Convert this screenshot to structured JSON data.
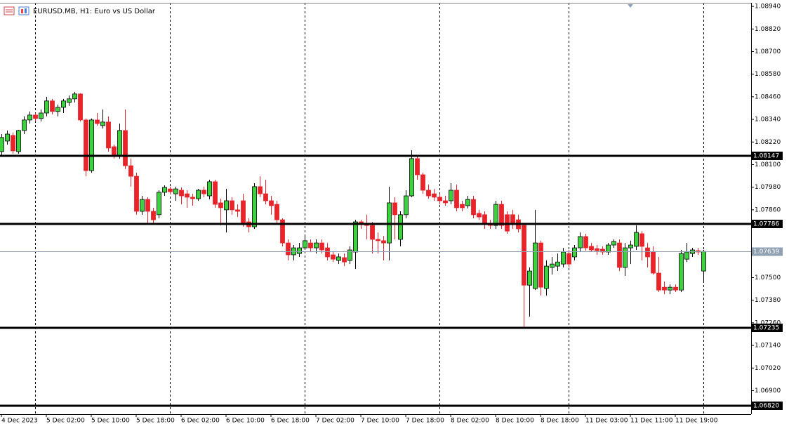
{
  "chart_data": {
    "type": "candlestick",
    "title": "EURUSD.MB, H1:  Euro vs US Dollar",
    "categories": [
      "4 Dec 2023",
      null,
      null,
      null,
      null,
      null,
      null,
      null,
      "5 Dec 02:00",
      null,
      null,
      null,
      null,
      null,
      null,
      null,
      "5 Dec 10:00",
      null,
      null,
      null,
      null,
      null,
      null,
      null,
      "5 Dec 18:00",
      null,
      null,
      null,
      null,
      null,
      null,
      null,
      "6 Dec 02:00",
      null,
      null,
      null,
      null,
      null,
      null,
      null,
      "6 Dec 10:00",
      null,
      null,
      null,
      null,
      null,
      null,
      null,
      "6 Dec 18:00",
      null,
      null,
      null,
      null,
      null,
      null,
      null,
      "7 Dec 02:00",
      null,
      null,
      null,
      null,
      null,
      null,
      null,
      "7 Dec 10:00",
      null,
      null,
      null,
      null,
      null,
      null,
      null,
      "7 Dec 18:00",
      null,
      null,
      null,
      null,
      null,
      null,
      null,
      "8 Dec 02:00",
      null,
      null,
      null,
      null,
      null,
      null,
      null,
      "8 Dec 10:00",
      null,
      null,
      null,
      null,
      null,
      null,
      null,
      "8 Dec 18:00",
      null,
      null,
      null,
      null,
      null,
      null,
      null,
      "11 Dec 03:00",
      null,
      null,
      null,
      null,
      null,
      null,
      null,
      "11 Dec 11:00",
      null,
      null,
      null,
      null,
      null,
      null,
      null,
      "11 Dec 19:00",
      null,
      null,
      null,
      null,
      null
    ],
    "open": [
      1.08169,
      1.08225,
      1.08255,
      1.08169,
      1.08281,
      1.08337,
      1.08363,
      1.08345,
      1.08374,
      1.08438,
      1.08382,
      1.08404,
      1.0843,
      1.08449,
      1.08475,
      1.08337,
      1.08068,
      1.08337,
      1.08307,
      1.08326,
      1.08195,
      1.0815,
      1.08281,
      1.08094,
      1.08038,
      1.07852,
      1.07915,
      1.07852,
      1.07834,
      1.07953,
      1.07971,
      1.07945,
      1.07964,
      1.07945,
      1.07927,
      1.07919,
      1.07964,
      1.07934,
      1.08009,
      1.07897,
      1.0786,
      1.07908,
      1.0786,
      1.07908,
      1.07796,
      1.0777,
      1.07983,
      1.07945,
      1.07908,
      1.07889,
      1.07807,
      1.07684,
      1.07621,
      1.07628,
      1.07658,
      1.07684,
      1.07658,
      1.07684,
      1.07658,
      1.07621,
      1.07591,
      1.07606,
      1.07591,
      1.07636,
      1.07796,
      1.07785,
      1.07777,
      1.07703,
      1.07696,
      1.07684,
      1.07897,
      1.07703,
      1.07834,
      1.07934,
      1.08132,
      1.08046,
      1.07964,
      1.07945,
      1.07927,
      1.07908,
      1.07908,
      1.07964,
      1.07889,
      1.07882,
      1.07915,
      1.07841,
      1.07834,
      1.07785,
      1.07777,
      1.07889,
      1.07834,
      1.07834,
      1.07807,
      1.07777,
      1.0746,
      1.07442,
      1.07684,
      1.07442,
      1.07554,
      1.07561,
      1.07572,
      1.07628,
      1.0761,
      1.07658,
      1.07718,
      1.07666,
      1.07654,
      1.07651,
      1.07636,
      1.07673,
      1.07684,
      1.07554,
      1.07658,
      1.07666,
      1.07733,
      1.07658,
      1.07636,
      1.07524,
      1.07449,
      1.07434,
      1.07449,
      1.07434,
      1.07598,
      1.07628,
      1.07643,
      1.07535
    ],
    "high": [
      1.08262,
      1.08281,
      1.0827,
      1.08285,
      1.08356,
      1.08382,
      1.08374,
      1.08393,
      1.0846,
      1.08449,
      1.08419,
      1.08449,
      1.08467,
      1.08486,
      1.08479,
      1.08345,
      1.08345,
      1.08374,
      1.08393,
      1.08356,
      1.08206,
      1.08318,
      1.08393,
      1.08132,
      1.08057,
      1.07934,
      1.07927,
      1.07871,
      1.07964,
      1.0799,
      1.07983,
      1.07983,
      1.07979,
      1.07964,
      1.07945,
      1.07971,
      1.07983,
      1.0802,
      1.0802,
      1.07919,
      1.07971,
      1.07927,
      1.07889,
      1.07945,
      1.07815,
      1.08001,
      1.08038,
      1.0802,
      1.07934,
      1.07908,
      1.07815,
      1.07703,
      1.07673,
      1.07684,
      1.07721,
      1.07703,
      1.07703,
      1.07703,
      1.07684,
      1.07636,
      1.07628,
      1.07628,
      1.07666,
      1.07807,
      1.07807,
      1.07834,
      1.07796,
      1.0774,
      1.07721,
      1.07983,
      1.07927,
      1.07852,
      1.07964,
      1.08176,
      1.0815,
      1.08057,
      1.07994,
      1.07971,
      1.07945,
      1.07934,
      1.08001,
      1.07994,
      1.07908,
      1.07934,
      1.07934,
      1.0786,
      1.07852,
      1.07807,
      1.07908,
      1.07908,
      1.07852,
      1.0786,
      1.07834,
      1.07785,
      1.07554,
      1.0786,
      1.07696,
      1.07591,
      1.0761,
      1.07628,
      1.07658,
      1.07647,
      1.07673,
      1.0774,
      1.07733,
      1.07684,
      1.07673,
      1.07666,
      1.07684,
      1.07703,
      1.07703,
      1.07684,
      1.07696,
      1.07777,
      1.07747,
      1.07684,
      1.07666,
      1.0761,
      1.07479,
      1.07464,
      1.07464,
      1.07647,
      1.07684,
      1.07658,
      1.07658,
      1.07647
    ],
    "low": [
      1.0815,
      1.08206,
      1.08158,
      1.08158,
      1.08262,
      1.08318,
      1.08329,
      1.08329,
      1.08356,
      1.08367,
      1.08356,
      1.08374,
      1.08412,
      1.0843,
      1.08329,
      1.08038,
      1.08057,
      1.08307,
      1.08292,
      1.08169,
      1.08132,
      1.08132,
      1.08076,
      1.07983,
      1.07834,
      1.07834,
      1.07785,
      1.07785,
      1.07815,
      1.07934,
      1.07942,
      1.07908,
      1.07889,
      1.07871,
      1.07882,
      1.07908,
      1.07927,
      1.07915,
      1.07871,
      1.07777,
      1.0774,
      1.07834,
      1.07822,
      1.0777,
      1.0774,
      1.07759,
      1.07927,
      1.07889,
      1.07834,
      1.07785,
      1.07666,
      1.07591,
      1.07591,
      1.0761,
      1.07647,
      1.07636,
      1.07628,
      1.07628,
      1.07591,
      1.07583,
      1.07572,
      1.07561,
      1.07572,
      1.07546,
      1.07759,
      1.07703,
      1.07628,
      1.07628,
      1.07591,
      1.07591,
      1.07703,
      1.07666,
      1.07815,
      1.07927,
      1.0802,
      1.07945,
      1.07919,
      1.07908,
      1.07889,
      1.07882,
      1.07889,
      1.07852,
      1.07852,
      1.07867,
      1.07815,
      1.07807,
      1.07759,
      1.07759,
      1.07759,
      1.07759,
      1.07733,
      1.07759,
      1.0774,
      1.07229,
      1.07293,
      1.07434,
      1.07405,
      1.07405,
      1.07516,
      1.07535,
      1.07554,
      1.07554,
      1.07591,
      1.07636,
      1.07643,
      1.07636,
      1.07621,
      1.07621,
      1.07621,
      1.07658,
      1.07535,
      1.07509,
      1.07572,
      1.07647,
      1.07591,
      1.07554,
      1.07516,
      1.07423,
      1.07412,
      1.07412,
      1.07423,
      1.07423,
      1.07583,
      1.0761,
      1.07621,
      1.07479
    ],
    "close": [
      1.08244,
      1.08262,
      1.08173,
      1.08281,
      1.08337,
      1.08363,
      1.08345,
      1.08374,
      1.08438,
      1.08382,
      1.08404,
      1.08438,
      1.08449,
      1.08475,
      1.08337,
      1.08068,
      1.08337,
      1.08318,
      1.08326,
      1.08188,
      1.0815,
      1.08281,
      1.08094,
      1.08038,
      1.07852,
      1.07915,
      1.07852,
      1.07807,
      1.07953,
      1.07979,
      1.07956,
      1.07971,
      1.07934,
      1.07927,
      1.07919,
      1.07964,
      1.07945,
      1.08009,
      1.07889,
      1.07871,
      1.07908,
      1.0786,
      1.07852,
      1.07785,
      1.0777,
      1.07983,
      1.07945,
      1.07908,
      1.07882,
      1.07807,
      1.07684,
      1.07621,
      1.07658,
      1.07658,
      1.07696,
      1.07658,
      1.07684,
      1.07647,
      1.0761,
      1.07598,
      1.0761,
      1.07583,
      1.07647,
      1.07796,
      1.07785,
      1.07777,
      1.07703,
      1.07696,
      1.07684,
      1.07897,
      1.07834,
      1.07834,
      1.07934,
      1.08132,
      1.08046,
      1.07964,
      1.07934,
      1.07927,
      1.07908,
      1.07897,
      1.07964,
      1.07871,
      1.07871,
      1.07915,
      1.07834,
      1.07822,
      1.07785,
      1.07777,
      1.07889,
      1.07777,
      1.07747,
      1.07785,
      1.07759,
      1.0746,
      1.07535,
      1.07684,
      1.07449,
      1.07561,
      1.07572,
      1.07583,
      1.07636,
      1.07572,
      1.07658,
      1.07718,
      1.07658,
      1.07647,
      1.07643,
      1.07636,
      1.07673,
      1.07692,
      1.07554,
      1.07658,
      1.07673,
      1.0774,
      1.07666,
      1.0761,
      1.07524,
      1.07434,
      1.07434,
      1.07449,
      1.07434,
      1.07628,
      1.07636,
      1.07647,
      1.07636,
      1.07639
    ],
    "up_color": "#3ed13e",
    "down_color": "#e8232a",
    "ylim": [
      1.06775,
      1.08959
    ],
    "yticks": [
      {
        "value": 1.0894,
        "label": "1.08940"
      },
      {
        "value": 1.0882,
        "label": "1.08820"
      },
      {
        "value": 1.087,
        "label": "1.08700"
      },
      {
        "value": 1.0858,
        "label": "1.08580"
      },
      {
        "value": 1.0846,
        "label": "1.08460"
      },
      {
        "value": 1.0834,
        "label": "1.08340"
      },
      {
        "value": 1.0822,
        "label": "1.08220"
      },
      {
        "value": 1.081,
        "label": "1.08100"
      },
      {
        "value": 1.0798,
        "label": "1.07980"
      },
      {
        "value": 1.0786,
        "label": "1.07860"
      },
      {
        "value": 1.075,
        "label": "1.07500"
      },
      {
        "value": 1.0738,
        "label": "1.07380"
      },
      {
        "value": 1.0726,
        "label": "1.07260"
      },
      {
        "value": 1.0714,
        "label": "1.07140"
      },
      {
        "value": 1.0702,
        "label": "1.07020"
      },
      {
        "value": 1.069,
        "label": "1.06900"
      }
    ],
    "levels": [
      1.08147,
      1.07786,
      1.07235,
      {
        "value": 1.0682,
        "label": "1.06820"
      }
    ],
    "current_price": 1.07639
  }
}
